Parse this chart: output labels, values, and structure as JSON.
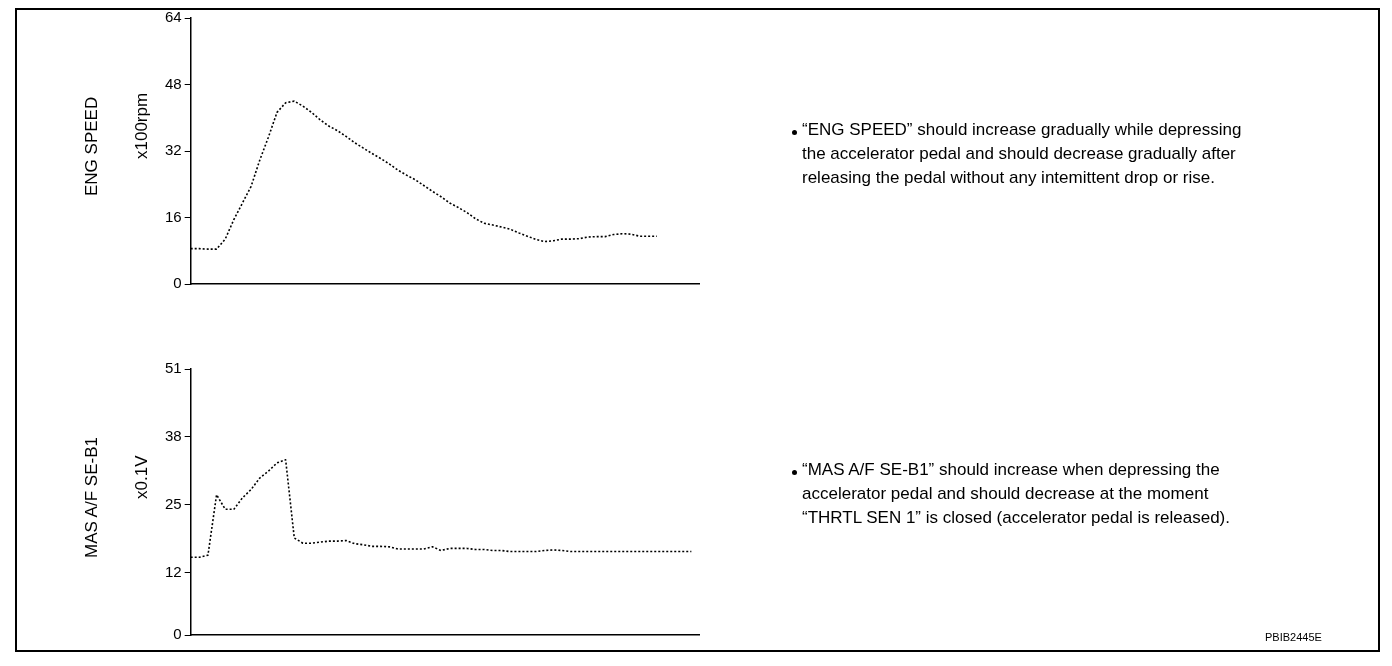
{
  "chart_data": [
    {
      "type": "line",
      "ylabel": "ENG SPEED",
      "subtitle": "x100rpm",
      "categories": [
        null,
        null,
        null,
        null,
        null,
        null,
        null,
        null,
        null,
        null,
        null,
        null,
        null,
        null,
        null,
        null,
        null,
        null,
        null,
        null,
        null,
        null,
        null,
        null,
        null,
        null,
        null,
        null,
        null,
        null,
        null,
        null,
        null,
        null,
        null,
        null,
        null,
        null,
        null,
        null,
        null,
        null,
        null,
        null,
        null,
        null,
        null,
        null,
        null,
        null,
        null,
        null,
        null,
        null,
        null,
        null,
        null,
        null,
        null,
        null
      ],
      "series": [
        {
          "color": "#000000",
          "values": [
            8.5,
            8.5,
            8.4,
            8.4,
            10.8,
            15.5,
            19.5,
            23.5,
            29.8,
            35.3,
            41.3,
            43.6,
            44,
            42.8,
            41.3,
            39.5,
            38,
            36.9,
            35.5,
            34,
            32.7,
            31.4,
            30.2,
            28.9,
            27.4,
            26.2,
            25.1,
            23.7,
            22.3,
            21,
            19.5,
            18.4,
            17.2,
            15.7,
            14.6,
            14.2,
            13.7,
            13.2,
            12.3,
            11.5,
            10.7,
            10.2,
            10.4,
            10.8,
            10.8,
            10.9,
            11.3,
            11.4,
            11.4,
            11.9,
            12.1,
            12,
            11.5,
            11.5,
            11.5,
            null,
            null,
            null,
            null,
            null
          ]
        }
      ],
      "ylim": [
        0,
        64
      ],
      "yticks": [
        0,
        16,
        32,
        48,
        64
      ],
      "grid": false,
      "legend": false,
      "marker": "none",
      "line_style": "dotted",
      "tick_labels": "y",
      "annotations": [
        "“ENG SPEED” should increase gradually while depressing the accelerator pedal and should decrease gradually after releasing the pedal without any intemittent drop or rise."
      ]
    },
    {
      "type": "line",
      "ylabel": "MAS A/F SE-B1",
      "subtitle": "x0.1V",
      "categories": [
        null,
        null,
        null,
        null,
        null,
        null,
        null,
        null,
        null,
        null,
        null,
        null,
        null,
        null,
        null,
        null,
        null,
        null,
        null,
        null,
        null,
        null,
        null,
        null,
        null,
        null,
        null,
        null,
        null,
        null,
        null,
        null,
        null,
        null,
        null,
        null,
        null,
        null,
        null,
        null,
        null,
        null,
        null,
        null,
        null,
        null,
        null,
        null,
        null,
        null,
        null,
        null,
        null,
        null,
        null,
        null,
        null,
        null,
        null,
        null
      ],
      "series": [
        {
          "color": "#000000",
          "values": [
            14.9,
            14.9,
            15.3,
            26.9,
            24.1,
            24.1,
            26.3,
            27.9,
            30.1,
            31.4,
            33,
            33.6,
            18.6,
            17.6,
            17.6,
            17.8,
            18,
            18,
            18.1,
            17.5,
            17.3,
            17,
            17,
            16.9,
            16.5,
            16.5,
            16.5,
            16.5,
            16.9,
            16.2,
            16.6,
            16.6,
            16.6,
            16.4,
            16.4,
            16.2,
            16.2,
            16,
            16,
            16,
            16,
            16.2,
            16.3,
            16.2,
            16,
            16,
            16,
            16,
            16,
            16,
            16,
            16,
            16,
            16,
            16,
            16,
            16,
            16,
            16,
            null
          ]
        }
      ],
      "ylim": [
        0,
        51
      ],
      "yticks": [
        0,
        12,
        25,
        38,
        51
      ],
      "grid": false,
      "legend": false,
      "marker": "none",
      "line_style": "dotted",
      "tick_labels": "y",
      "annotations": [
        "“MAS A/F SE-B1” should increase when depressing the accelerator pedal and  should decrease at the moment “THRTL SEN 1” is closed (accelerator pedal is released).",
        "PBIB2445E"
      ]
    }
  ]
}
